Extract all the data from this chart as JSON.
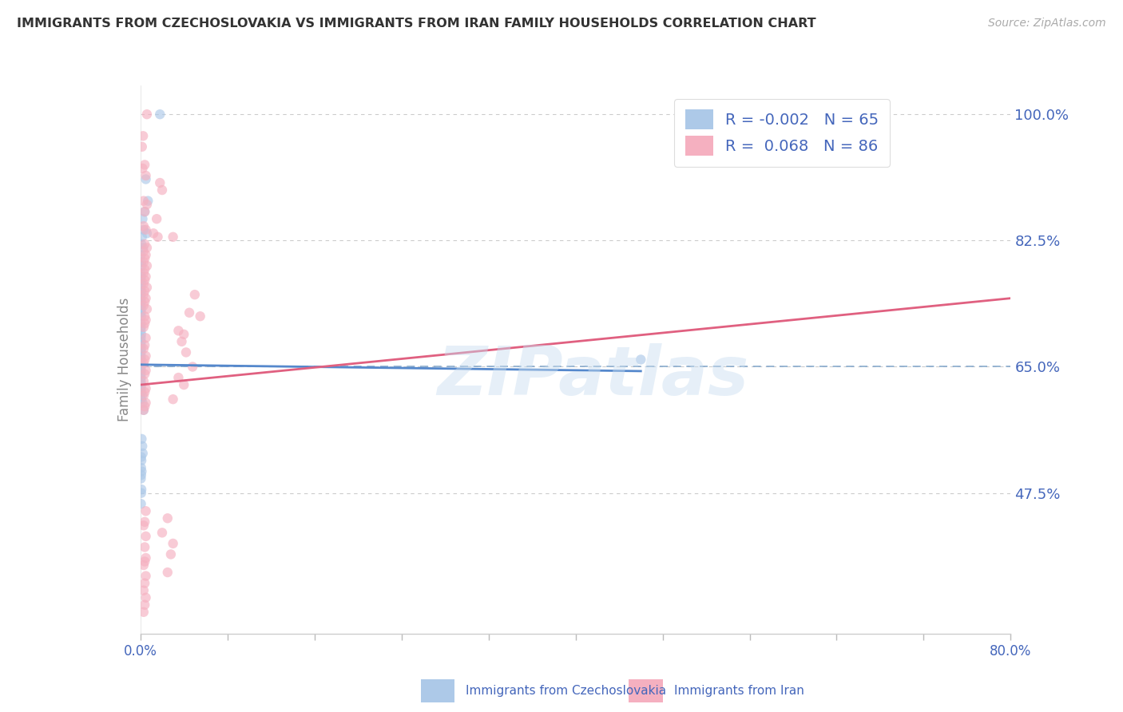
{
  "title": "IMMIGRANTS FROM CZECHOSLOVAKIA VS IMMIGRANTS FROM IRAN FAMILY HOUSEHOLDS CORRELATION CHART",
  "source": "Source: ZipAtlas.com",
  "ylabel": "Family Households",
  "right_yticks": [
    47.5,
    65.0,
    82.5,
    100.0
  ],
  "watermark": "ZIPatlas",
  "legend": {
    "R1": -0.002,
    "N1": 65,
    "color1": "#adc9e8",
    "R2": 0.068,
    "N2": 86,
    "color2": "#f5b0c0"
  },
  "blue_scatter": [
    [
      1.8,
      100.0
    ],
    [
      0.5,
      91.0
    ],
    [
      0.7,
      88.0
    ],
    [
      0.4,
      86.5
    ],
    [
      0.2,
      85.5
    ],
    [
      0.3,
      84.0
    ],
    [
      0.6,
      83.5
    ],
    [
      0.15,
      83.0
    ],
    [
      0.1,
      82.0
    ],
    [
      0.25,
      81.5
    ],
    [
      0.05,
      80.5
    ],
    [
      0.08,
      79.5
    ],
    [
      0.12,
      79.0
    ],
    [
      0.05,
      78.0
    ],
    [
      0.08,
      77.5
    ],
    [
      0.05,
      77.0
    ],
    [
      0.1,
      76.5
    ],
    [
      0.05,
      76.0
    ],
    [
      0.08,
      75.5
    ],
    [
      0.06,
      75.0
    ],
    [
      0.05,
      74.5
    ],
    [
      0.07,
      74.0
    ],
    [
      0.05,
      73.5
    ],
    [
      0.1,
      73.0
    ],
    [
      0.05,
      72.5
    ],
    [
      0.08,
      72.0
    ],
    [
      0.05,
      71.0
    ],
    [
      0.06,
      70.5
    ],
    [
      0.05,
      70.0
    ],
    [
      0.08,
      69.5
    ],
    [
      0.05,
      69.0
    ],
    [
      0.07,
      68.5
    ],
    [
      0.05,
      68.0
    ],
    [
      0.08,
      67.5
    ],
    [
      0.05,
      67.0
    ],
    [
      0.06,
      66.5
    ],
    [
      0.05,
      66.0
    ],
    [
      0.08,
      65.5
    ],
    [
      0.05,
      65.0
    ],
    [
      0.07,
      64.5
    ],
    [
      0.05,
      64.0
    ],
    [
      0.06,
      63.5
    ],
    [
      0.05,
      63.0
    ],
    [
      0.1,
      62.5
    ],
    [
      0.05,
      62.0
    ],
    [
      0.08,
      61.5
    ],
    [
      0.15,
      61.0
    ],
    [
      0.05,
      60.5
    ],
    [
      0.2,
      60.0
    ],
    [
      0.3,
      59.0
    ],
    [
      0.12,
      55.0
    ],
    [
      0.18,
      54.0
    ],
    [
      0.22,
      53.0
    ],
    [
      0.08,
      52.5
    ],
    [
      0.1,
      52.0
    ],
    [
      0.07,
      51.0
    ],
    [
      0.12,
      50.5
    ],
    [
      0.08,
      50.0
    ],
    [
      0.05,
      49.5
    ],
    [
      0.1,
      48.0
    ],
    [
      0.08,
      47.5
    ],
    [
      0.06,
      46.0
    ],
    [
      46.0,
      66.0
    ]
  ],
  "pink_scatter": [
    [
      0.6,
      100.0
    ],
    [
      0.25,
      97.0
    ],
    [
      0.15,
      95.5
    ],
    [
      0.4,
      93.0
    ],
    [
      0.2,
      92.5
    ],
    [
      0.5,
      91.5
    ],
    [
      1.8,
      90.5
    ],
    [
      2.0,
      89.5
    ],
    [
      0.3,
      88.0
    ],
    [
      0.6,
      87.5
    ],
    [
      0.4,
      86.5
    ],
    [
      1.5,
      85.5
    ],
    [
      0.3,
      84.5
    ],
    [
      0.5,
      84.0
    ],
    [
      1.2,
      83.5
    ],
    [
      1.6,
      83.0
    ],
    [
      3.0,
      83.0
    ],
    [
      0.4,
      82.0
    ],
    [
      0.6,
      81.5
    ],
    [
      0.3,
      81.0
    ],
    [
      0.5,
      80.5
    ],
    [
      0.4,
      80.0
    ],
    [
      0.3,
      79.5
    ],
    [
      0.6,
      79.0
    ],
    [
      0.4,
      78.5
    ],
    [
      0.3,
      78.0
    ],
    [
      0.5,
      77.5
    ],
    [
      0.4,
      77.0
    ],
    [
      0.3,
      76.5
    ],
    [
      0.6,
      76.0
    ],
    [
      0.4,
      75.5
    ],
    [
      0.3,
      75.0
    ],
    [
      5.0,
      75.0
    ],
    [
      0.5,
      74.5
    ],
    [
      0.4,
      74.0
    ],
    [
      0.3,
      73.5
    ],
    [
      0.6,
      73.0
    ],
    [
      4.5,
      72.5
    ],
    [
      0.4,
      72.0
    ],
    [
      5.5,
      72.0
    ],
    [
      0.5,
      71.5
    ],
    [
      0.4,
      71.0
    ],
    [
      0.3,
      70.5
    ],
    [
      3.5,
      70.0
    ],
    [
      4.0,
      69.5
    ],
    [
      0.5,
      69.0
    ],
    [
      3.8,
      68.5
    ],
    [
      0.4,
      68.0
    ],
    [
      0.3,
      67.5
    ],
    [
      4.2,
      67.0
    ],
    [
      0.5,
      66.5
    ],
    [
      0.4,
      66.0
    ],
    [
      0.3,
      65.5
    ],
    [
      4.8,
      65.0
    ],
    [
      0.5,
      64.5
    ],
    [
      0.4,
      64.0
    ],
    [
      3.5,
      63.5
    ],
    [
      0.3,
      63.0
    ],
    [
      4.0,
      62.5
    ],
    [
      0.5,
      62.0
    ],
    [
      0.4,
      61.5
    ],
    [
      0.3,
      61.0
    ],
    [
      3.0,
      60.5
    ],
    [
      0.5,
      60.0
    ],
    [
      0.4,
      59.5
    ],
    [
      0.3,
      59.0
    ],
    [
      0.5,
      45.0
    ],
    [
      2.5,
      44.0
    ],
    [
      0.4,
      43.5
    ],
    [
      0.3,
      43.0
    ],
    [
      2.0,
      42.0
    ],
    [
      0.5,
      41.5
    ],
    [
      3.0,
      40.5
    ],
    [
      0.4,
      40.0
    ],
    [
      2.8,
      39.0
    ],
    [
      0.5,
      38.5
    ],
    [
      0.4,
      38.0
    ],
    [
      0.3,
      37.5
    ],
    [
      2.5,
      36.5
    ],
    [
      0.5,
      36.0
    ],
    [
      0.4,
      35.0
    ],
    [
      0.3,
      34.0
    ],
    [
      0.5,
      33.0
    ],
    [
      0.4,
      32.0
    ],
    [
      0.3,
      31.0
    ]
  ],
  "xlim": [
    0,
    80
  ],
  "ylim": [
    28,
    104
  ],
  "blue_line_x": [
    0,
    46
  ],
  "blue_line_y": [
    65.3,
    64.4
  ],
  "pink_line_x": [
    0,
    80
  ],
  "pink_line_y": [
    62.5,
    74.5
  ],
  "hline_y": 65.0,
  "bg_color": "#ffffff",
  "scatter_alpha": 0.65,
  "scatter_size": 80,
  "line_color_blue": "#5588cc",
  "line_color_pink": "#e06080",
  "hline_color": "#88aacc",
  "grid_color": "#cccccc",
  "text_color": "#4466bb",
  "title_color": "#333333"
}
